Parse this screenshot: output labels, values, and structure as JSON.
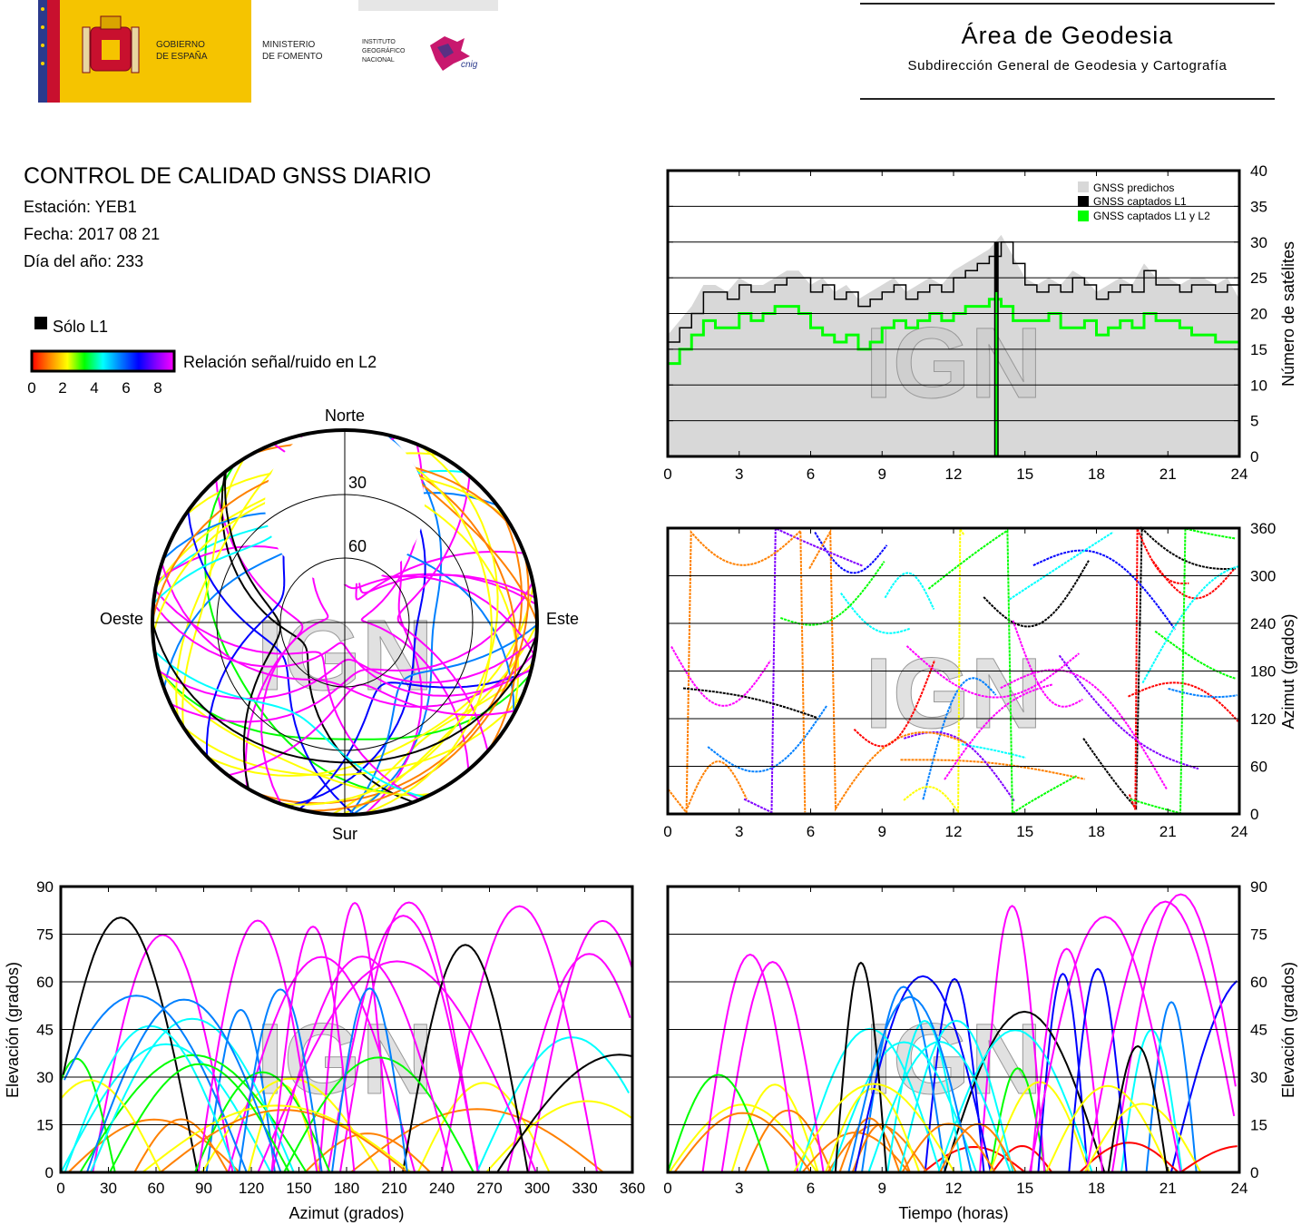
{
  "header": {
    "logos": {
      "gobierno": "GOBIERNO DE ESPAÑA",
      "ministerio": "MINISTERIO DE FOMENTO",
      "instituto": "INSTITUTO GEOGRÁFICO NACIONAL",
      "cnig": "cnig"
    },
    "area_title": "Área de Geodesia",
    "area_subtitle": "Subdirección General de Geodesia y Cartografía"
  },
  "report": {
    "title": "CONTROL DE CALIDAD GNSS DIARIO",
    "station": "Estación: YEB1",
    "date": "Fecha: 2017 08 21",
    "doy": "Día del año: 233"
  },
  "legend": {
    "l1_only": "Sólo L1",
    "snr_label": "Relación señal/ruido en L2",
    "snr_ticks": [
      "0",
      "2",
      "4",
      "6",
      "8"
    ],
    "snr_colors": [
      "#ff0000",
      "#ff8000",
      "#ffff00",
      "#00ff00",
      "#00ffff",
      "#0080ff",
      "#0000ff",
      "#8000ff",
      "#ff00ff"
    ]
  },
  "watermark": "IGN",
  "chart_data": [
    {
      "type": "polar",
      "id": "skyplot",
      "labels": {
        "north": "Norte",
        "south": "Sur",
        "west": "Oeste",
        "east": "Este"
      },
      "rings": [
        "30",
        "60"
      ],
      "description_free": true
    },
    {
      "type": "line",
      "id": "satellites",
      "ylabel": "Número de satélites",
      "xticks": [
        "0",
        "3",
        "6",
        "9",
        "12",
        "15",
        "18",
        "21",
        "24"
      ],
      "yticks": [
        "0",
        "5",
        "10",
        "15",
        "20",
        "25",
        "30",
        "35",
        "40"
      ],
      "ylim": [
        0,
        40
      ],
      "xlim": [
        0,
        24
      ],
      "legend": [
        "GNSS predichos",
        "GNSS captados L1",
        "GNSS captados L1 y L2"
      ],
      "colors": {
        "predicted": "#d8d8d8",
        "l1": "#000000",
        "l1l2": "#00ff00"
      },
      "series": [
        {
          "name": "GNSS captados L1",
          "x": [
            0,
            0.5,
            1,
            1.5,
            2,
            2.5,
            3,
            3.5,
            4,
            4.5,
            5,
            5.5,
            6,
            6.5,
            7,
            7.5,
            8,
            8.5,
            9,
            9.5,
            10,
            10.5,
            11,
            11.5,
            12,
            12.5,
            13,
            13.5,
            14,
            14.5,
            15,
            15.5,
            16,
            16.5,
            17,
            17.5,
            18,
            18.5,
            19,
            19.5,
            20,
            20.5,
            21,
            21.5,
            22,
            22.5,
            23,
            23.5,
            24
          ],
          "values": [
            16,
            18,
            20,
            23,
            23,
            22,
            24,
            23,
            23,
            24,
            25,
            25,
            23,
            24,
            22,
            23,
            21,
            22,
            23,
            24,
            22,
            23,
            24,
            23,
            25,
            26,
            27,
            28,
            30,
            27,
            24,
            23,
            24,
            23,
            25,
            24,
            22,
            23,
            24,
            23,
            26,
            24,
            24,
            23,
            24,
            24,
            23,
            24,
            21
          ]
        },
        {
          "name": "GNSS captados L1 y L2",
          "x": [
            0,
            0.5,
            1,
            1.5,
            2,
            2.5,
            3,
            3.5,
            4,
            4.5,
            5,
            5.5,
            6,
            6.5,
            7,
            7.5,
            8,
            8.5,
            9,
            9.5,
            10,
            10.5,
            11,
            11.5,
            12,
            12.5,
            13,
            13.5,
            14,
            14.5,
            15,
            15.5,
            16,
            16.5,
            17,
            17.5,
            18,
            18.5,
            19,
            19.5,
            20,
            20.5,
            21,
            21.5,
            22,
            22.5,
            23,
            23.5,
            24
          ],
          "values": [
            13,
            15,
            17,
            19,
            18,
            18,
            20,
            19,
            20,
            21,
            21,
            20,
            18,
            17,
            16,
            17,
            15,
            16,
            18,
            19,
            18,
            19,
            20,
            19,
            20,
            21,
            21,
            22,
            21,
            19,
            19,
            19,
            20,
            18,
            18,
            19,
            17,
            18,
            19,
            18,
            20,
            19,
            19,
            18,
            17,
            17,
            16,
            16,
            15
          ]
        }
      ]
    },
    {
      "type": "scatter",
      "id": "azimuth-time",
      "ylabel": "Azimut (grados)",
      "xticks": [
        "0",
        "3",
        "6",
        "9",
        "12",
        "15",
        "18",
        "21",
        "24"
      ],
      "yticks": [
        "0",
        "60",
        "120",
        "180",
        "240",
        "300",
        "360"
      ],
      "ylim": [
        0,
        360
      ],
      "xlim": [
        0,
        24
      ]
    },
    {
      "type": "scatter",
      "id": "elevation-azimuth",
      "xlabel": "Azimut (grados)",
      "ylabel": "Elevación (grados)",
      "xticks": [
        "0",
        "30",
        "60",
        "90",
        "120",
        "150",
        "180",
        "210",
        "240",
        "270",
        "300",
        "330",
        "360"
      ],
      "yticks": [
        "0",
        "15",
        "30",
        "45",
        "60",
        "75",
        "90"
      ],
      "xlim": [
        0,
        360
      ],
      "ylim": [
        0,
        90
      ]
    },
    {
      "type": "scatter",
      "id": "elevation-time",
      "xlabel": "Tiempo (horas)",
      "ylabel": "Elevación (grados)",
      "xticks": [
        "0",
        "3",
        "6",
        "9",
        "12",
        "15",
        "18",
        "21",
        "24"
      ],
      "yticks": [
        "0",
        "15",
        "30",
        "45",
        "60",
        "75",
        "90"
      ],
      "xlim": [
        0,
        24
      ],
      "ylim": [
        0,
        90
      ]
    }
  ]
}
